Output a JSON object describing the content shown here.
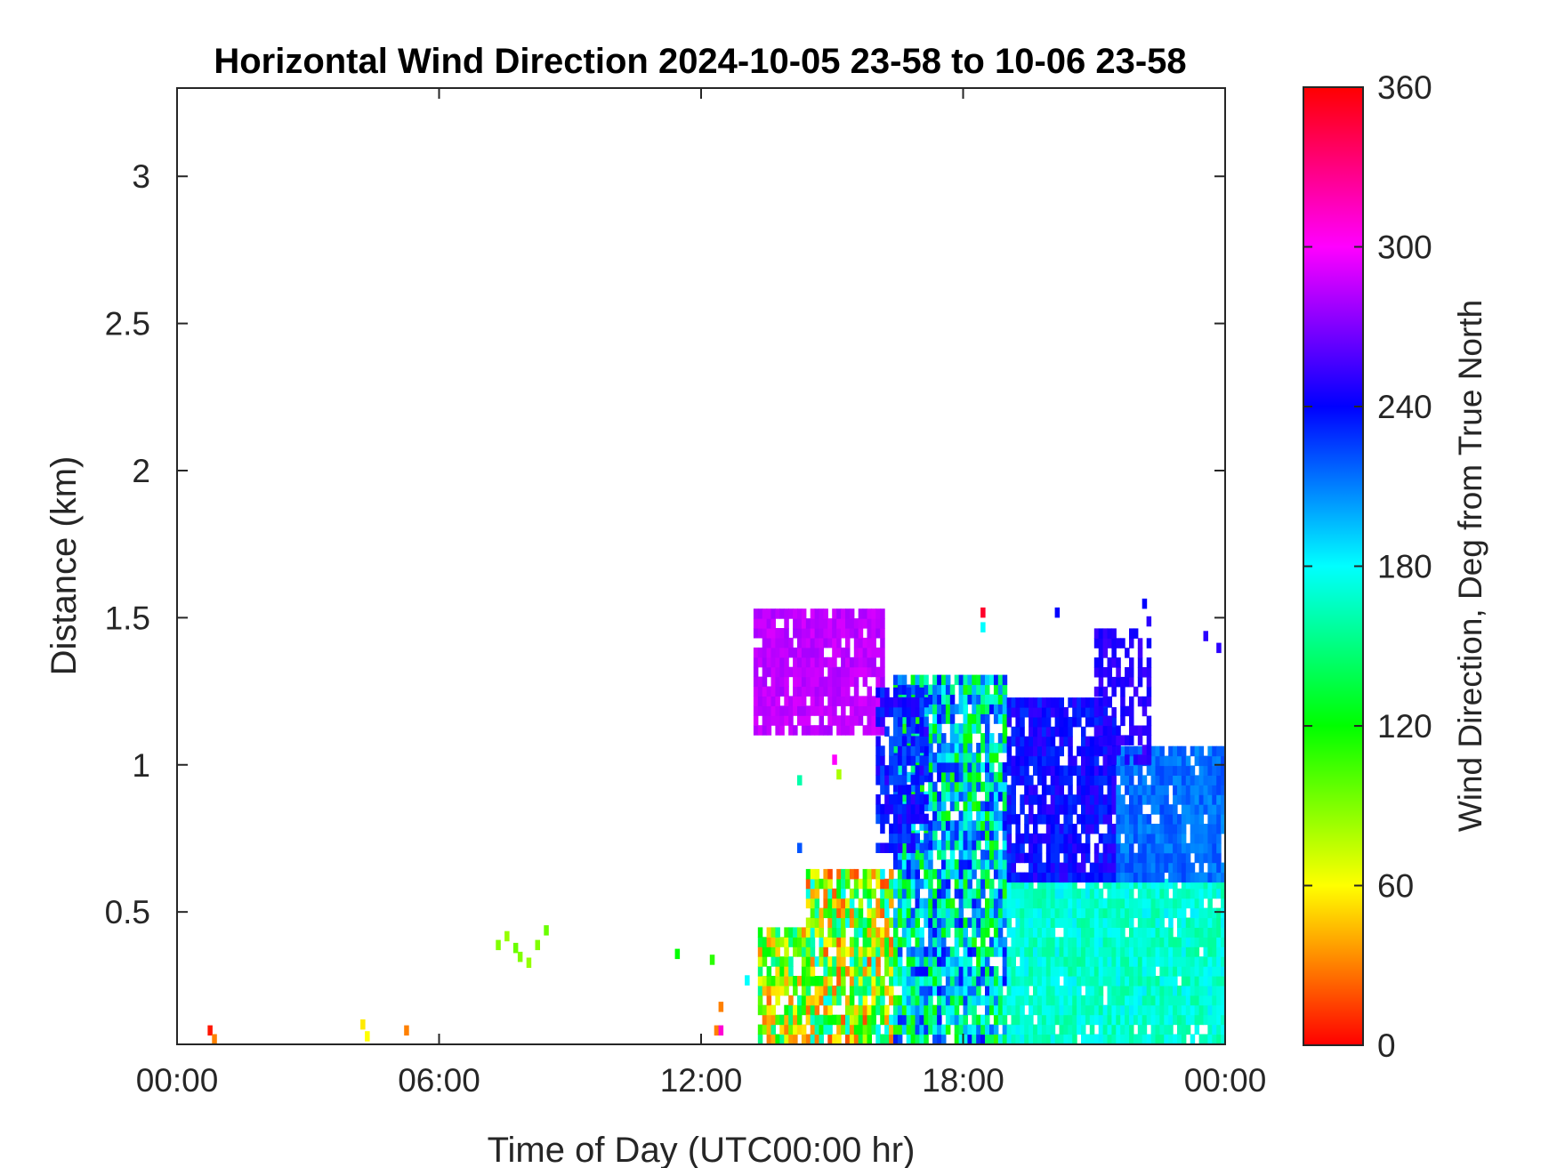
{
  "chart_data": {
    "type": "heatmap",
    "title": "Horizontal Wind Direction 2024-10-05 23-58 to 10-06 23-58",
    "xlabel": "Time of Day (UTC00:00 hr)",
    "ylabel": "Distance (km)",
    "x_unit": "hours",
    "xlim": [
      0,
      24
    ],
    "ylim": [
      0.05,
      3.3
    ],
    "x_ticks": [
      0,
      6,
      12,
      18,
      24
    ],
    "x_tick_labels": [
      "00:00",
      "06:00",
      "12:00",
      "18:00",
      "00:00"
    ],
    "y_ticks": [
      0.5,
      1,
      1.5,
      2,
      2.5,
      3
    ],
    "y_tick_labels": [
      "0.5",
      "1",
      "1.5",
      "2",
      "2.5",
      "3"
    ],
    "grid": false,
    "colorbar": {
      "label": "Wind Direction, Deg from True North",
      "range": [
        0,
        360
      ],
      "ticks": [
        0,
        60,
        120,
        180,
        240,
        300,
        360
      ],
      "tick_labels": [
        "0",
        "60",
        "120",
        "180",
        "240",
        "300",
        "360"
      ],
      "colormap": "hsv-like: red (0) - yellow (60) - green (120) - cyan (180) - blue (240) - magenta (300) - red (360)"
    },
    "regions": [
      {
        "t_start": 13.2,
        "t_end": 16.1,
        "h_start": 1.1,
        "h_end": 1.5,
        "dir_mean": 285,
        "dir_spread": 12,
        "density": 0.85
      },
      {
        "t_start": 13.3,
        "t_end": 14.4,
        "h_start": 0.05,
        "h_end": 0.42,
        "dir_mean": 95,
        "dir_spread": 140,
        "density": 0.8
      },
      {
        "t_start": 14.4,
        "t_end": 16.4,
        "h_start": 0.05,
        "h_end": 0.62,
        "dir_mean": 100,
        "dir_spread": 170,
        "density": 0.85
      },
      {
        "t_start": 16.4,
        "t_end": 19.0,
        "h_start": 0.05,
        "h_end": 1.3,
        "dir_mean": 175,
        "dir_spread": 130,
        "density": 0.88
      },
      {
        "t_start": 19.0,
        "t_end": 24.0,
        "h_start": 0.05,
        "h_end": 0.6,
        "dir_mean": 170,
        "dir_spread": 30,
        "density": 0.95
      },
      {
        "t_start": 19.0,
        "t_end": 21.5,
        "h_start": 0.6,
        "h_end": 1.2,
        "dir_mean": 240,
        "dir_spread": 25,
        "density": 0.85
      },
      {
        "t_start": 21.5,
        "t_end": 24.0,
        "h_start": 0.6,
        "h_end": 1.05,
        "dir_mean": 215,
        "dir_spread": 20,
        "density": 0.9
      },
      {
        "t_start": 21.0,
        "t_end": 22.3,
        "h_start": 1.0,
        "h_end": 1.45,
        "dir_mean": 250,
        "dir_spread": 15,
        "density": 0.55
      },
      {
        "t_start": 16.0,
        "t_end": 17.2,
        "h_start": 0.7,
        "h_end": 1.25,
        "dir_mean": 235,
        "dir_spread": 35,
        "density": 0.75
      }
    ],
    "scattered_points": [
      {
        "t": 0.7,
        "h": 0.08,
        "dir": 5
      },
      {
        "t": 0.8,
        "h": 0.05,
        "dir": 30
      },
      {
        "t": 4.2,
        "h": 0.1,
        "dir": 55
      },
      {
        "t": 4.3,
        "h": 0.06,
        "dir": 60
      },
      {
        "t": 5.2,
        "h": 0.08,
        "dir": 30
      },
      {
        "t": 7.3,
        "h": 0.37,
        "dir": 90
      },
      {
        "t": 7.5,
        "h": 0.4,
        "dir": 85
      },
      {
        "t": 7.7,
        "h": 0.36,
        "dir": 95
      },
      {
        "t": 7.8,
        "h": 0.33,
        "dir": 90
      },
      {
        "t": 8.0,
        "h": 0.31,
        "dir": 85
      },
      {
        "t": 8.2,
        "h": 0.37,
        "dir": 90
      },
      {
        "t": 8.4,
        "h": 0.42,
        "dir": 95
      },
      {
        "t": 11.4,
        "h": 0.34,
        "dir": 120
      },
      {
        "t": 12.2,
        "h": 0.32,
        "dir": 110
      },
      {
        "t": 12.3,
        "h": 0.08,
        "dir": 30
      },
      {
        "t": 12.4,
        "h": 0.16,
        "dir": 30
      },
      {
        "t": 12.4,
        "h": 0.08,
        "dir": 310
      },
      {
        "t": 13.0,
        "h": 0.25,
        "dir": 180
      },
      {
        "t": 14.2,
        "h": 0.93,
        "dir": 160
      },
      {
        "t": 14.2,
        "h": 0.7,
        "dir": 220
      },
      {
        "t": 15.0,
        "h": 1.0,
        "dir": 300
      },
      {
        "t": 15.1,
        "h": 0.95,
        "dir": 80
      },
      {
        "t": 18.4,
        "h": 1.5,
        "dir": 350
      },
      {
        "t": 18.4,
        "h": 1.45,
        "dir": 180
      },
      {
        "t": 20.1,
        "h": 1.5,
        "dir": 240
      },
      {
        "t": 22.1,
        "h": 1.53,
        "dir": 240
      },
      {
        "t": 22.2,
        "h": 1.47,
        "dir": 250
      },
      {
        "t": 23.5,
        "h": 1.42,
        "dir": 250
      },
      {
        "t": 23.8,
        "h": 1.38,
        "dir": 250
      }
    ]
  }
}
